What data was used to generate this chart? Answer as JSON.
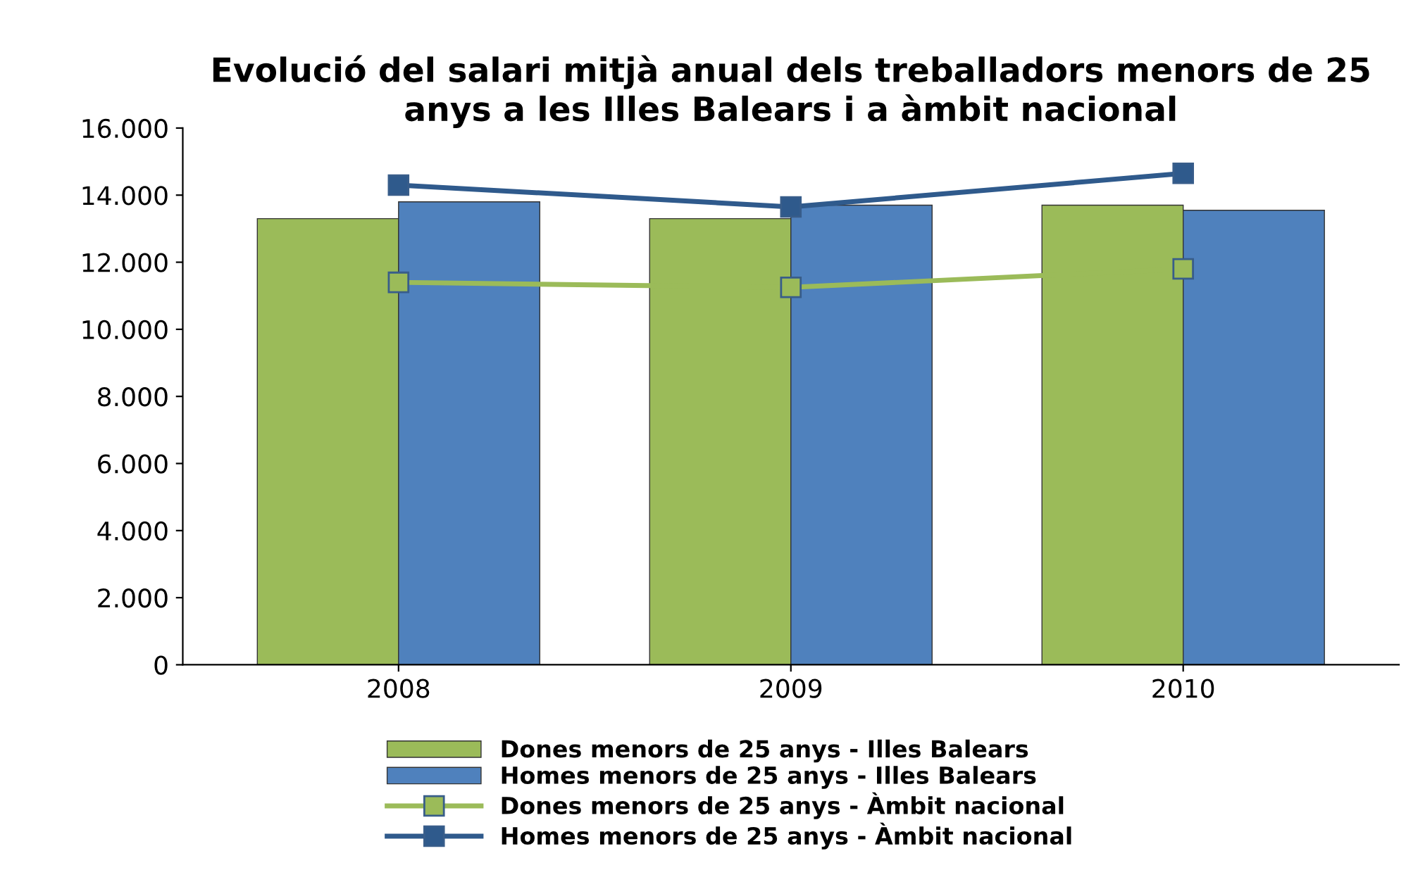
{
  "chart_data": {
    "type": "bar",
    "title": "Evolució del salari mitjà anual dels treballadors menors de 25 anys a les Illes Balears i a àmbit nacional",
    "categories": [
      "2008",
      "2009",
      "2010"
    ],
    "series": [
      {
        "name": "Dones menors de 25 anys - Illes Balears",
        "color": "#9bbb59",
        "values": [
          13300,
          13300,
          13700
        ]
      },
      {
        "name": "Homes menors de 25 anys - Illes Balears",
        "color": "#4f81bd",
        "values": [
          13800,
          13700,
          13550
        ]
      },
      {
        "type": "line",
        "name": "Dones menors de 25 anys - Àmbit nacional",
        "color": "#9bbb59",
        "values": [
          11400,
          11250,
          11800
        ]
      },
      {
        "type": "line",
        "name": "Homes menors de 25 anys - Àmbit nacional",
        "color": "#2f5a8c",
        "values": [
          14300,
          13650,
          14650
        ]
      }
    ],
    "ylim": [
      0,
      16000
    ],
    "yticks": [
      {
        "value": 0,
        "label": "0"
      },
      {
        "value": 2000,
        "label": "2.000"
      },
      {
        "value": 4000,
        "label": "4.000"
      },
      {
        "value": 6000,
        "label": "6.000"
      },
      {
        "value": 8000,
        "label": "8.000"
      },
      {
        "value": 10000,
        "label": "10.000"
      },
      {
        "value": 12000,
        "label": "12.000"
      },
      {
        "value": 14000,
        "label": "14.000"
      },
      {
        "value": 16000,
        "label": "16.000"
      }
    ],
    "grid": false,
    "legend": "bottom",
    "marker": "square",
    "line_style": "solid"
  }
}
